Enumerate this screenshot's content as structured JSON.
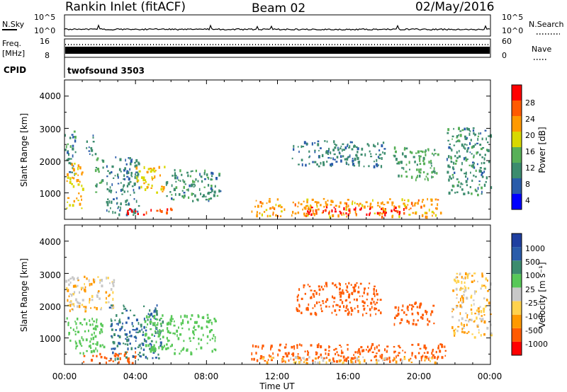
{
  "header": {
    "title": "Rankin Inlet (fitACF)",
    "beam": "Beam 02",
    "date": "02/May/2016"
  },
  "noise_panel": {
    "left_label": "N.Sky",
    "right_label": "N.Search",
    "left_ticks": [
      "10^5",
      "10^0"
    ],
    "right_ticks": [
      "10^5",
      "10^0"
    ]
  },
  "freq_panel": {
    "left_label_1": "Freq.",
    "left_label_2": "[MHz]",
    "right_label": "Nave",
    "left_ticks": [
      "16",
      "8"
    ],
    "right_ticks": [
      "60",
      "0"
    ]
  },
  "cpid_panel": {
    "label": "CPID",
    "value": "twofsound 3503"
  },
  "power_panel": {
    "ylabel": "Slant Range [km]",
    "y_ticks": [
      "4000",
      "3000",
      "2000",
      "1000"
    ],
    "colorbar_label": "Power [dB]",
    "colorbar_ticks": [
      "28",
      "24",
      "20",
      "16",
      "12",
      "8",
      "4"
    ],
    "colors": [
      "#0000ff",
      "#2a5caa",
      "#3c8c6e",
      "#58b058",
      "#d8d800",
      "#ff9900",
      "#ff5a00",
      "#ff0000"
    ]
  },
  "velocity_panel": {
    "ylabel": "Slant Range [km]",
    "y_ticks": [
      "4000",
      "3000",
      "2000",
      "1000"
    ],
    "colorbar_label": "Velocity [m s⁻¹]",
    "colorbar_ticks": [
      "1000",
      "500",
      "100",
      "25",
      "-25",
      "-100",
      "-500",
      "-1000"
    ],
    "colors": [
      "#ff0000",
      "#ff5a00",
      "#ff9900",
      "#ffd24d",
      "#c8c8c8",
      "#58c858",
      "#3c8c6e",
      "#2a5caa",
      "#1f3fa0"
    ]
  },
  "x_axis": {
    "label": "Time UT",
    "ticks": [
      "00:00",
      "04:00",
      "08:00",
      "12:00",
      "16:00",
      "20:00",
      "00:00"
    ]
  },
  "chart_data": {
    "type": "heatmap",
    "x": [
      "00:00",
      "04:00",
      "08:00",
      "12:00",
      "16:00",
      "20:00",
      "00:00"
    ],
    "xlabel": "Time UT",
    "ylabel": "Slant Range [km]",
    "ylim": [
      180,
      4500
    ],
    "xlim_hours": [
      0,
      24
    ],
    "power_scale_db": [
      0,
      32
    ],
    "velocity_scale": [
      -1000,
      1000
    ],
    "power_regions": [
      {
        "t0": 0.0,
        "t1": 0.6,
        "r0": 1400,
        "r1": 2900,
        "db": 10
      },
      {
        "t0": 0.1,
        "t1": 1.0,
        "r0": 500,
        "r1": 1900,
        "db": 20
      },
      {
        "t0": 1.2,
        "t1": 1.6,
        "r0": 2000,
        "r1": 2800,
        "db": 8
      },
      {
        "t0": 1.7,
        "t1": 2.2,
        "r0": 1000,
        "r1": 2200,
        "db": 12
      },
      {
        "t0": 2.3,
        "t1": 4.2,
        "r0": 300,
        "r1": 2100,
        "db": 9
      },
      {
        "t0": 3.5,
        "t1": 4.2,
        "r0": 300,
        "r1": 550,
        "db": 29
      },
      {
        "t0": 4.0,
        "t1": 5.6,
        "r0": 1000,
        "r1": 1800,
        "db": 20
      },
      {
        "t0": 4.4,
        "t1": 6.0,
        "r0": 300,
        "r1": 500,
        "db": 29
      },
      {
        "t0": 5.7,
        "t1": 8.8,
        "r0": 700,
        "r1": 1700,
        "db": 10
      },
      {
        "t0": 10.5,
        "t1": 21.2,
        "r0": 250,
        "r1": 800,
        "db": 22
      },
      {
        "t0": 13.5,
        "t1": 19.5,
        "r0": 300,
        "r1": 550,
        "db": 30
      },
      {
        "t0": 12.8,
        "t1": 18.0,
        "r0": 1800,
        "r1": 2600,
        "db": 9
      },
      {
        "t0": 18.5,
        "t1": 21.0,
        "r0": 1400,
        "r1": 2400,
        "db": 13
      },
      {
        "t0": 21.5,
        "t1": 24.0,
        "r0": 900,
        "r1": 3000,
        "db": 10
      }
    ],
    "velocity_regions": [
      {
        "t0": 0.0,
        "t1": 2.8,
        "r0": 1800,
        "r1": 2900,
        "v": 0
      },
      {
        "t0": 0.1,
        "t1": 2.2,
        "r0": 500,
        "r1": 1600,
        "v": 400
      },
      {
        "t0": 2.5,
        "t1": 5.5,
        "r0": 300,
        "r1": 2000,
        "v": 900
      },
      {
        "t0": 1.0,
        "t1": 4.0,
        "r0": 200,
        "r1": 550,
        "v": -200
      },
      {
        "t0": 4.5,
        "t1": 8.5,
        "r0": 500,
        "r1": 1700,
        "v": 400
      },
      {
        "t0": 10.5,
        "t1": 21.5,
        "r0": 250,
        "r1": 800,
        "v": -200
      },
      {
        "t0": 11.0,
        "t1": 21.0,
        "r0": 200,
        "r1": 400,
        "v": 0
      },
      {
        "t0": 13.0,
        "t1": 17.8,
        "r0": 1700,
        "r1": 2700,
        "v": -400
      },
      {
        "t0": 18.5,
        "t1": 20.8,
        "r0": 1400,
        "r1": 2100,
        "v": -400
      },
      {
        "t0": 21.8,
        "t1": 24.0,
        "r0": 1000,
        "r1": 3000,
        "v": 0
      }
    ]
  }
}
